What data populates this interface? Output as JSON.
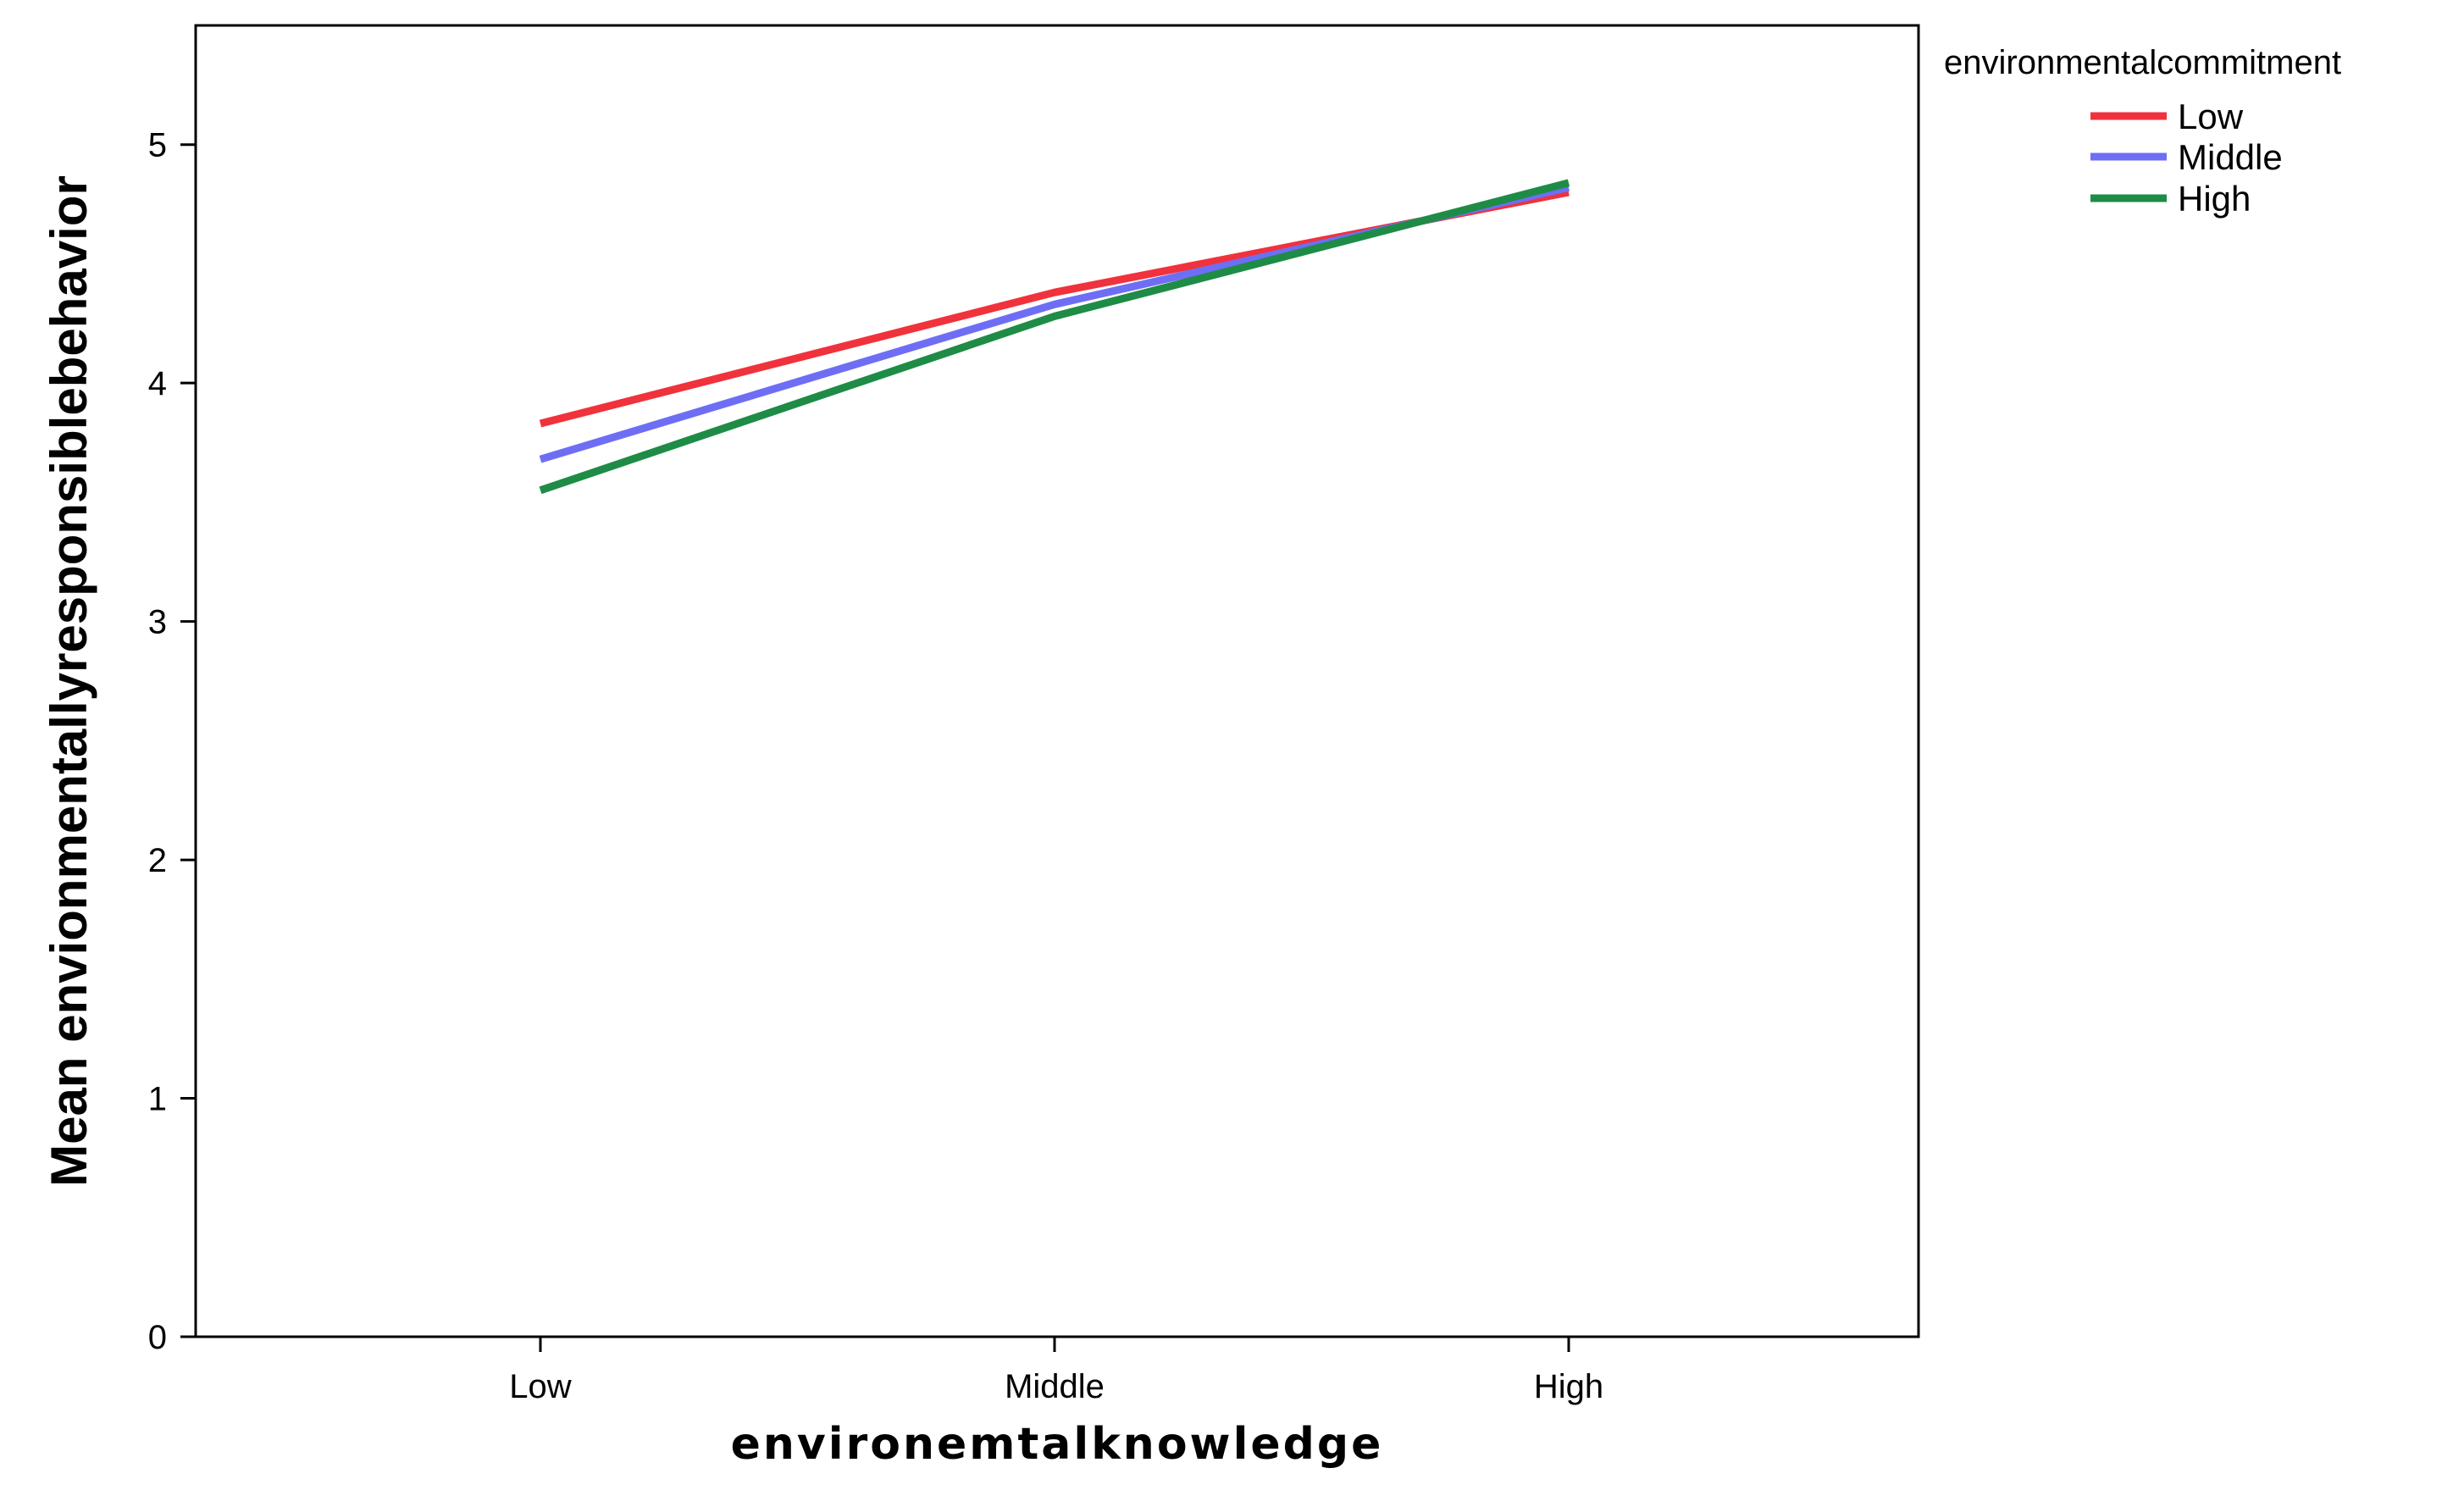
{
  "chart_data": {
    "type": "line",
    "categories": [
      "Low",
      "Middle",
      "High"
    ],
    "series": [
      {
        "name": "Low",
        "values": [
          3.83,
          4.38,
          4.8
        ],
        "color": "#f0323c"
      },
      {
        "name": "Middle",
        "values": [
          3.68,
          4.33,
          4.82
        ],
        "color": "#6e6ef5"
      },
      {
        "name": "High",
        "values": [
          3.55,
          4.28,
          4.84
        ],
        "color": "#1e8c46"
      }
    ],
    "xlabel": "environemtalknowledge",
    "ylabel": "Mean envionmentallyresponsiblebehavior",
    "ylim": [
      0,
      5.5
    ],
    "yticks": [
      0,
      1,
      2,
      3,
      4,
      5
    ],
    "legend_title": "environmentalcommitment",
    "legend_position": "top-right",
    "grid": false,
    "plot_background": "#ffffff"
  }
}
